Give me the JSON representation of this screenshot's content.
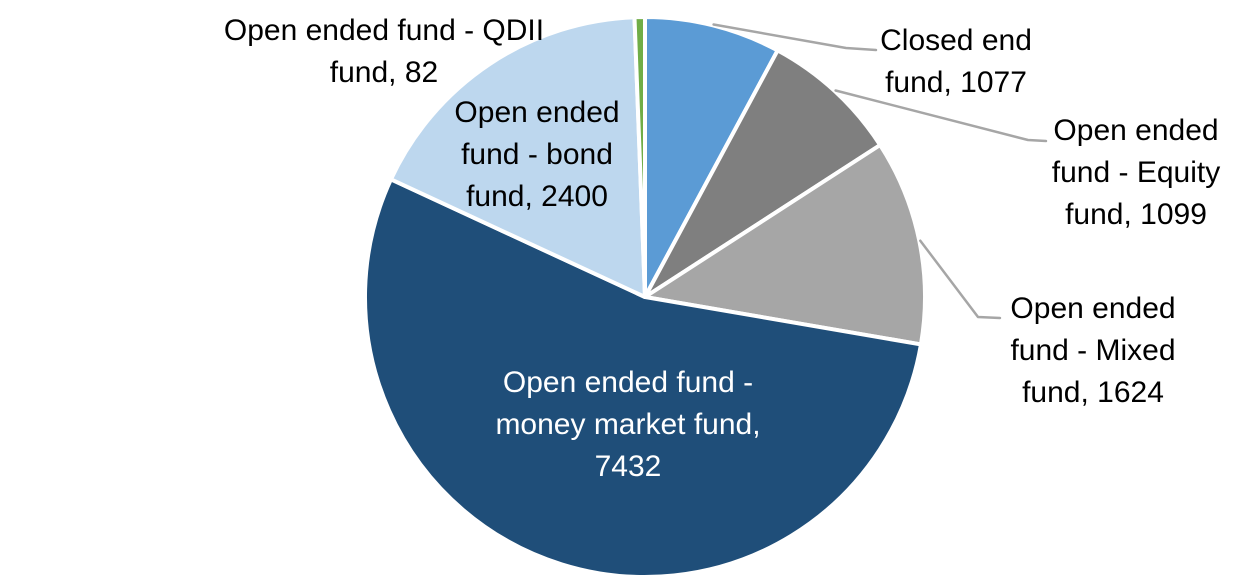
{
  "chart_data": {
    "type": "pie",
    "title": "",
    "legend_position": "none",
    "start_angle_deg": 0,
    "direction": "clockwise",
    "data_label_format": "category name, value",
    "slices": [
      {
        "key": "closed-end-fund",
        "label": "Closed end fund",
        "value": 1077,
        "color": "#5B9BD5"
      },
      {
        "key": "open-ended-equity-fund",
        "label": "Open ended fund - Equity fund",
        "value": 1099,
        "color": "#7F7F7F"
      },
      {
        "key": "open-ended-mixed-fund",
        "label": "Open ended fund - Mixed fund",
        "value": 1624,
        "color": "#A6A6A6"
      },
      {
        "key": "open-ended-money-market-fund",
        "label": "Open ended fund - money market fund",
        "value": 7432,
        "color": "#1F4E79"
      },
      {
        "key": "open-ended-bond-fund",
        "label": "Open ended fund - bond fund",
        "value": 2400,
        "color": "#BDD7EE"
      },
      {
        "key": "open-ended-qdii-fund",
        "label": "Open ended fund - QDII fund",
        "value": 82,
        "color": "#70AD47"
      }
    ]
  },
  "labels": {
    "closed_end": {
      "lines": [
        "Closed end",
        "fund, 1077"
      ]
    },
    "equity": {
      "lines": [
        "Open ended",
        "fund - Equity",
        "fund, 1099"
      ]
    },
    "mixed": {
      "lines": [
        "Open ended",
        "fund - Mixed",
        "fund, 1624"
      ]
    },
    "money_market": {
      "lines": [
        "Open ended fund -",
        "money market fund,",
        "7432"
      ]
    },
    "bond": {
      "lines": [
        "Open ended",
        "fund - bond",
        "fund, 2400"
      ]
    },
    "qdii": {
      "lines": [
        "Open ended fund - QDII",
        "fund, 82"
      ]
    }
  },
  "colors": {
    "background": "#FFFFFF",
    "slice_border": "#FFFFFF",
    "leader_line": "#A6A6A6",
    "outside_label_text": "#000000",
    "inside_label_text": "#FFFFFF"
  }
}
